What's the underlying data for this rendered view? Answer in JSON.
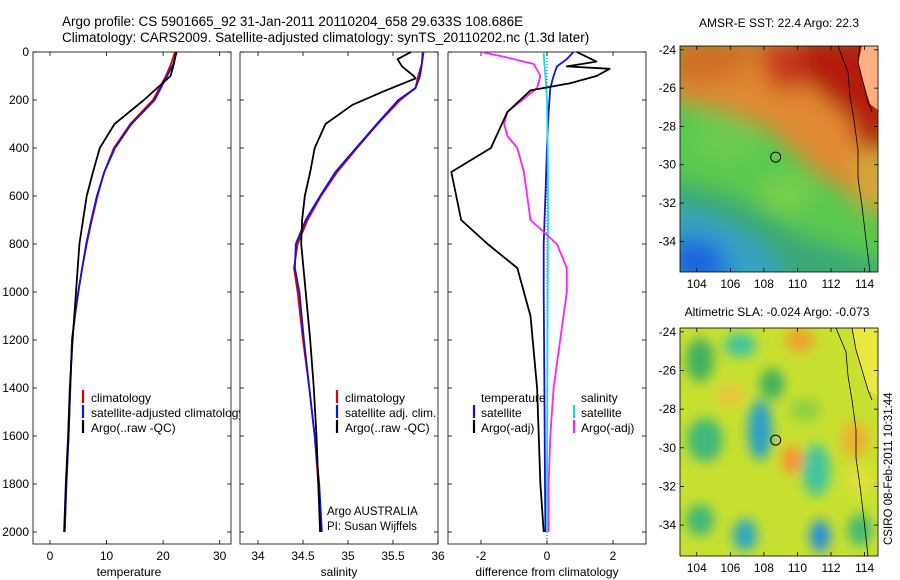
{
  "header": {
    "line1": "Argo profile: CS 5901665_92 31-Jan-2011 20110204_658 29.633S 108.686E",
    "line2": "Climatology: CARS2009. Satellite-adjusted climatology: synTS_20110202.nc (1.3d later)"
  },
  "side_text": "CSIRO 08-Feb-2011 10:31:44",
  "annotation": {
    "line1": "Argo AUSTRALIA",
    "line2": "PI: Susan Wijffels"
  },
  "colors": {
    "climatology": "#e00000",
    "satellite": "#1010e0",
    "argo": "#000000",
    "sal_satellite": "#10e0e0",
    "sal_argo": "#ff20ff"
  },
  "chart_data": [
    {
      "type": "line",
      "xlabel": "temperature",
      "ylabel": "",
      "xlim": [
        -3,
        32
      ],
      "ylim": [
        2050,
        0
      ],
      "xticks": [
        0,
        10,
        20,
        30
      ],
      "yticks": [
        0,
        200,
        400,
        600,
        800,
        1000,
        1200,
        1400,
        1600,
        1800,
        2000
      ],
      "legend": [
        "climatology",
        "satellite-adjusted climatology",
        "Argo(..raw -QC)"
      ],
      "series": [
        {
          "name": "climatology",
          "color": "#e00000",
          "points": [
            [
              22.1,
              0
            ],
            [
              21.4,
              50
            ],
            [
              20.5,
              100
            ],
            [
              18.2,
              200
            ],
            [
              14.2,
              300
            ],
            [
              11.3,
              400
            ],
            [
              9.6,
              500
            ],
            [
              8.4,
              600
            ],
            [
              7.4,
              700
            ],
            [
              6.5,
              800
            ],
            [
              5.7,
              900
            ],
            [
              5.0,
              1000
            ],
            [
              4.4,
              1100
            ],
            [
              3.9,
              1200
            ],
            [
              3.6,
              1400
            ],
            [
              3.3,
              1600
            ],
            [
              2.9,
              1800
            ],
            [
              2.6,
              2000
            ]
          ]
        },
        {
          "name": "satellite-adjusted climatology",
          "color": "#1010e0",
          "points": [
            [
              22.4,
              0
            ],
            [
              21.8,
              50
            ],
            [
              20.7,
              100
            ],
            [
              18.5,
              200
            ],
            [
              14.4,
              300
            ],
            [
              11.5,
              400
            ],
            [
              9.6,
              500
            ],
            [
              8.3,
              600
            ],
            [
              7.3,
              700
            ],
            [
              6.4,
              800
            ],
            [
              5.7,
              900
            ],
            [
              5.0,
              1000
            ],
            [
              4.4,
              1100
            ],
            [
              3.9,
              1200
            ],
            [
              3.6,
              1400
            ],
            [
              3.3,
              1600
            ],
            [
              2.9,
              1800
            ],
            [
              2.6,
              2000
            ]
          ]
        },
        {
          "name": "Argo(..raw -QC)",
          "color": "#000000",
          "points": [
            [
              22.3,
              0
            ],
            [
              21.9,
              50
            ],
            [
              21.3,
              100
            ],
            [
              16.6,
              200
            ],
            [
              11.4,
              300
            ],
            [
              8.8,
              400
            ],
            [
              7.6,
              500
            ],
            [
              6.5,
              600
            ],
            [
              5.2,
              800
            ],
            [
              4.6,
              1000
            ],
            [
              4.0,
              1200
            ],
            [
              3.5,
              1400
            ],
            [
              3.2,
              1600
            ],
            [
              2.8,
              1800
            ],
            [
              2.5,
              2000
            ]
          ]
        }
      ]
    },
    {
      "type": "line",
      "xlabel": "salinity",
      "ylabel": "",
      "xlim": [
        33.8,
        36.0
      ],
      "ylim": [
        2050,
        0
      ],
      "xticks": [
        34,
        34.5,
        35,
        35.5,
        36
      ],
      "yticks": [],
      "legend": [
        "climatology",
        "satellite adj. clim.",
        "Argo(..raw -QC)"
      ],
      "series": [
        {
          "name": "climatology",
          "color": "#e00000",
          "points": [
            [
              35.84,
              0
            ],
            [
              35.82,
              50
            ],
            [
              35.78,
              100
            ],
            [
              35.75,
              150
            ],
            [
              35.58,
              200
            ],
            [
              35.33,
              300
            ],
            [
              35.1,
              400
            ],
            [
              34.88,
              500
            ],
            [
              34.7,
              600
            ],
            [
              34.55,
              700
            ],
            [
              34.44,
              800
            ],
            [
              34.4,
              900
            ],
            [
              34.44,
              1000
            ],
            [
              34.5,
              1200
            ],
            [
              34.57,
              1400
            ],
            [
              34.63,
              1600
            ],
            [
              34.67,
              1800
            ],
            [
              34.7,
              2000
            ]
          ]
        },
        {
          "name": "satellite adj. clim.",
          "color": "#1010e0",
          "points": [
            [
              35.83,
              0
            ],
            [
              35.82,
              50
            ],
            [
              35.8,
              100
            ],
            [
              35.75,
              150
            ],
            [
              35.56,
              200
            ],
            [
              35.32,
              300
            ],
            [
              35.09,
              400
            ],
            [
              34.86,
              500
            ],
            [
              34.69,
              600
            ],
            [
              34.53,
              700
            ],
            [
              34.42,
              800
            ],
            [
              34.41,
              900
            ],
            [
              34.46,
              1000
            ],
            [
              34.51,
              1200
            ],
            [
              34.57,
              1400
            ],
            [
              34.63,
              1600
            ],
            [
              34.68,
              1800
            ],
            [
              34.71,
              2000
            ]
          ]
        },
        {
          "name": "Argo(..raw -QC)",
          "color": "#000000",
          "points": [
            [
              35.7,
              0
            ],
            [
              35.55,
              30
            ],
            [
              35.6,
              60
            ],
            [
              35.73,
              100
            ],
            [
              35.75,
              110
            ],
            [
              35.42,
              160
            ],
            [
              35.05,
              220
            ],
            [
              34.75,
              300
            ],
            [
              34.63,
              400
            ],
            [
              34.58,
              500
            ],
            [
              34.52,
              600
            ],
            [
              34.49,
              700
            ],
            [
              34.48,
              800
            ],
            [
              34.53,
              1000
            ],
            [
              34.58,
              1200
            ],
            [
              34.62,
              1400
            ],
            [
              34.65,
              1600
            ],
            [
              34.67,
              1800
            ],
            [
              34.69,
              2000
            ]
          ]
        }
      ]
    },
    {
      "type": "line",
      "xlabel": "difference from climatology",
      "ylabel": "",
      "xlim": [
        -3,
        3
      ],
      "ylim": [
        2050,
        0
      ],
      "xticks": [
        -2,
        0,
        2
      ],
      "yticks": [],
      "legend": [
        "temperature",
        "satellite",
        "Argo(-adj)",
        "salinity",
        "satellite",
        "Argo(-adj)"
      ],
      "series": [
        {
          "name": "satellite",
          "color": "#1010e0",
          "points": [
            [
              0.8,
              0
            ],
            [
              0.6,
              30
            ],
            [
              0.3,
              60
            ],
            [
              0.2,
              100
            ],
            [
              0.1,
              150
            ],
            [
              0.05,
              250
            ],
            [
              0.0,
              400
            ],
            [
              -0.05,
              600
            ],
            [
              -0.1,
              800
            ],
            [
              -0.1,
              1000
            ],
            [
              -0.08,
              1400
            ],
            [
              -0.06,
              1800
            ],
            [
              -0.05,
              2000
            ]
          ]
        },
        {
          "name": "satellite",
          "color": "#10e0e0",
          "points": [
            [
              -0.1,
              0
            ],
            [
              -0.08,
              50
            ],
            [
              -0.05,
              100
            ],
            [
              0.0,
              200
            ],
            [
              0.02,
              400
            ],
            [
              0.03,
              700
            ],
            [
              0.02,
              1000
            ],
            [
              0.01,
              1400
            ],
            [
              0.0,
              1800
            ],
            [
              0.0,
              2000
            ]
          ]
        },
        {
          "name": "Argo(-adj)",
          "color": "#ff20ff",
          "points": [
            [
              -2.0,
              0
            ],
            [
              -1.3,
              20
            ],
            [
              -0.4,
              50
            ],
            [
              -0.2,
              100
            ],
            [
              -0.3,
              150
            ],
            [
              -1.2,
              250
            ],
            [
              -1.3,
              300
            ],
            [
              -1.2,
              350
            ],
            [
              -0.9,
              400
            ],
            [
              -0.7,
              500
            ],
            [
              -0.5,
              700
            ],
            [
              0.3,
              800
            ],
            [
              0.6,
              900
            ],
            [
              0.6,
              1000
            ],
            [
              0.4,
              1200
            ],
            [
              0.2,
              1400
            ],
            [
              0.1,
              1600
            ],
            [
              0.05,
              1800
            ],
            [
              0.05,
              2000
            ]
          ]
        },
        {
          "name": "Argo(-adj)",
          "color": "#000000",
          "points": [
            [
              0.9,
              0
            ],
            [
              1.5,
              40
            ],
            [
              0.6,
              60
            ],
            [
              1.9,
              70
            ],
            [
              1.5,
              100
            ],
            [
              0.7,
              130
            ],
            [
              -0.5,
              160
            ],
            [
              -1.2,
              250
            ],
            [
              -1.7,
              400
            ],
            [
              -2.9,
              500
            ],
            [
              -2.6,
              700
            ],
            [
              -1.8,
              800
            ],
            [
              -0.9,
              900
            ],
            [
              -0.5,
              1100
            ],
            [
              -0.3,
              1400
            ],
            [
              -0.2,
              1800
            ],
            [
              -0.1,
              2000
            ]
          ]
        }
      ]
    },
    {
      "type": "heatmap",
      "title": "AMSR-E SST: 22.4 Argo: 22.3",
      "xlim": [
        103,
        114.8
      ],
      "ylim": [
        -35.6,
        -23.8
      ],
      "xticks": [
        104,
        106,
        108,
        110,
        112,
        114
      ],
      "yticks": [
        -24,
        -26,
        -28,
        -30,
        -32,
        -34
      ],
      "marker": [
        108.7,
        -29.6
      ]
    },
    {
      "type": "heatmap",
      "title": "Altimetric SLA: -0.024 Argo: -0.073",
      "xlim": [
        103,
        114.8
      ],
      "ylim": [
        -35.6,
        -23.8
      ],
      "xticks": [
        104,
        106,
        108,
        110,
        112,
        114
      ],
      "yticks": [
        -24,
        -26,
        -28,
        -30,
        -32,
        -34
      ],
      "marker": [
        108.7,
        -29.6
      ]
    }
  ]
}
